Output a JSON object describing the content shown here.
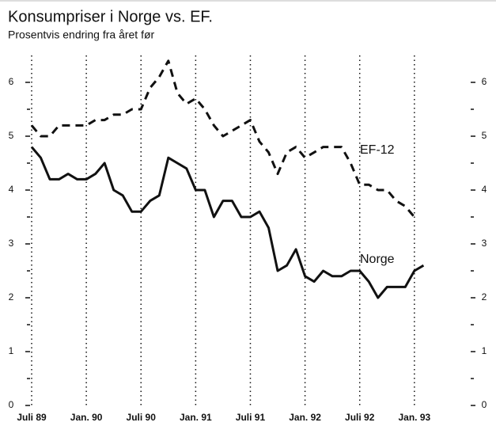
{
  "chart_data": {
    "type": "line",
    "title": "Konsumpriser i Norge vs. EF.",
    "subtitle": "Prosentvis endring fra året før",
    "categories": [
      "Juli 89",
      null,
      null,
      null,
      null,
      null,
      "Jan. 90",
      null,
      null,
      null,
      null,
      null,
      "Juli 90",
      null,
      null,
      null,
      null,
      null,
      "Jan. 91",
      null,
      null,
      null,
      null,
      null,
      "Juli 91",
      null,
      null,
      null,
      null,
      null,
      "Jan. 92",
      null,
      null,
      null,
      null,
      null,
      "Juli 92",
      null,
      null,
      null,
      null,
      null,
      "Jan. 93",
      null
    ],
    "series": [
      {
        "name": "EF-12",
        "color": "#111111",
        "dashed": true,
        "values": [
          5.2,
          5.0,
          5.0,
          5.2,
          5.2,
          5.2,
          5.2,
          5.3,
          5.3,
          5.4,
          5.4,
          5.5,
          5.5,
          5.9,
          6.1,
          6.4,
          5.8,
          5.6,
          5.7,
          5.5,
          5.2,
          5.0,
          5.1,
          5.2,
          5.3,
          4.9,
          4.7,
          4.3,
          4.7,
          4.8,
          4.6,
          4.7,
          4.8,
          4.8,
          4.8,
          4.5,
          4.1,
          4.1,
          4.0,
          4.0,
          3.8,
          3.7,
          3.5,
          null
        ]
      },
      {
        "name": "Norge",
        "color": "#111111",
        "dashed": false,
        "values": [
          4.8,
          4.6,
          4.2,
          4.2,
          4.3,
          4.2,
          4.2,
          4.3,
          4.5,
          4.0,
          3.9,
          3.6,
          3.6,
          3.8,
          3.9,
          4.6,
          4.5,
          4.4,
          4.0,
          4.0,
          3.5,
          3.8,
          3.8,
          3.5,
          3.5,
          3.6,
          3.3,
          2.5,
          2.6,
          2.9,
          2.4,
          2.3,
          2.5,
          2.4,
          2.4,
          2.5,
          2.5,
          2.3,
          2.0,
          2.2,
          2.2,
          2.2,
          2.5,
          2.6
        ]
      }
    ],
    "ylim": [
      0,
      6
    ],
    "yticks": [
      0,
      1,
      2,
      3,
      4,
      5,
      6
    ],
    "yminorticks": [
      0.5,
      1.5,
      2.5,
      3.5,
      4.5,
      5.5
    ],
    "vgrid": true
  }
}
